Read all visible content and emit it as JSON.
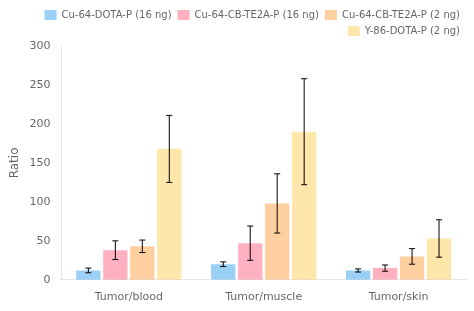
{
  "chart_data": {
    "type": "bar",
    "categories": [
      "Tumor/blood",
      "Tumor/muscle",
      "Tumor/skin"
    ],
    "series": [
      {
        "name": "Cu-64-DOTA-P (16 ng)",
        "values": [
          12,
          20,
          12
        ],
        "errors": [
          3,
          3,
          2
        ]
      },
      {
        "name": "Cu-64-CB-TE2A-P (16 ng)",
        "values": [
          38,
          47,
          15
        ],
        "errors": [
          12,
          22,
          4
        ]
      },
      {
        "name": "Cu-64-CB-TE2A-P (2 ng)",
        "values": [
          43,
          98,
          30
        ],
        "errors": [
          8,
          38,
          10
        ]
      },
      {
        "name": "Y-86-DOTA-P (2 ng)",
        "values": [
          168,
          190,
          53
        ],
        "errors": [
          43,
          68,
          24
        ]
      }
    ],
    "ylabel": "Ratio",
    "ylim": [
      0,
      300
    ],
    "yticks": [
      0,
      50,
      100,
      150,
      200,
      250,
      300
    ],
    "grid": false,
    "legend": "upper right"
  }
}
